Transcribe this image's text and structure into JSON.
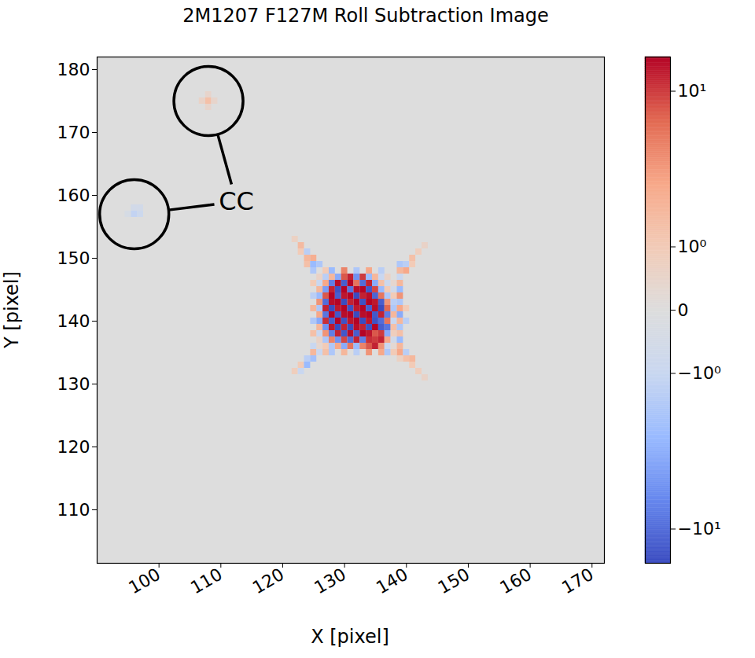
{
  "chart_data": {
    "type": "heatmap",
    "title": "2M1207 F127M Roll Subtraction Image",
    "x_label": "X [pixel]",
    "y_label": "Y [pixel]",
    "xlim": [
      90,
      172
    ],
    "ylim": [
      101.5,
      182
    ],
    "xticks": [
      100,
      110,
      120,
      130,
      140,
      150,
      160,
      170
    ],
    "yticks": [
      110,
      120,
      130,
      140,
      150,
      160,
      170,
      180
    ],
    "background_value": 0,
    "cells": [
      [
        126,
        147,
        0.5
      ],
      [
        127,
        147,
        -1.5
      ],
      [
        128,
        147,
        2
      ],
      [
        129,
        147,
        -4
      ],
      [
        130,
        147,
        8
      ],
      [
        131,
        147,
        12
      ],
      [
        132,
        147,
        -6
      ],
      [
        133,
        147,
        10
      ],
      [
        134,
        147,
        -3
      ],
      [
        135,
        147,
        2
      ],
      [
        136,
        147,
        -1
      ],
      [
        137,
        147,
        0.5
      ],
      [
        126,
        146,
        -1
      ],
      [
        127,
        146,
        3
      ],
      [
        128,
        146,
        -8
      ],
      [
        129,
        146,
        14
      ],
      [
        130,
        146,
        -12
      ],
      [
        131,
        146,
        15
      ],
      [
        132,
        146,
        6
      ],
      [
        133,
        146,
        -10
      ],
      [
        134,
        146,
        12
      ],
      [
        135,
        146,
        -4
      ],
      [
        136,
        146,
        1.5
      ],
      [
        137,
        146,
        -0.8
      ],
      [
        138,
        146,
        0.3
      ],
      [
        126,
        145,
        2
      ],
      [
        127,
        145,
        -5
      ],
      [
        128,
        145,
        12
      ],
      [
        129,
        145,
        -14
      ],
      [
        130,
        145,
        15
      ],
      [
        131,
        145,
        -9
      ],
      [
        132,
        145,
        14
      ],
      [
        133,
        145,
        15
      ],
      [
        134,
        145,
        -13
      ],
      [
        135,
        145,
        9
      ],
      [
        136,
        145,
        -3
      ],
      [
        137,
        145,
        1
      ],
      [
        138,
        145,
        -0.5
      ],
      [
        126,
        144,
        -3
      ],
      [
        127,
        144,
        8
      ],
      [
        128,
        144,
        15
      ],
      [
        129,
        144,
        -12
      ],
      [
        130,
        144,
        13
      ],
      [
        131,
        144,
        15
      ],
      [
        132,
        144,
        -15
      ],
      [
        133,
        144,
        12
      ],
      [
        134,
        144,
        14
      ],
      [
        135,
        144,
        -11
      ],
      [
        136,
        144,
        6
      ],
      [
        137,
        144,
        -2
      ],
      [
        138,
        144,
        1
      ],
      [
        126,
        143,
        4
      ],
      [
        127,
        143,
        -10
      ],
      [
        128,
        143,
        14
      ],
      [
        129,
        143,
        15
      ],
      [
        130,
        143,
        -15
      ],
      [
        131,
        143,
        12
      ],
      [
        132,
        143,
        15
      ],
      [
        133,
        143,
        -14
      ],
      [
        134,
        143,
        15
      ],
      [
        135,
        143,
        13
      ],
      [
        136,
        143,
        -12
      ],
      [
        137,
        143,
        4
      ],
      [
        138,
        143,
        -1.5
      ],
      [
        126,
        142,
        -2
      ],
      [
        127,
        142,
        12
      ],
      [
        128,
        142,
        -15
      ],
      [
        129,
        142,
        13
      ],
      [
        130,
        142,
        15
      ],
      [
        131,
        142,
        -14
      ],
      [
        132,
        142,
        13
      ],
      [
        133,
        142,
        15
      ],
      [
        134,
        142,
        -12
      ],
      [
        135,
        142,
        14
      ],
      [
        136,
        142,
        -15
      ],
      [
        137,
        142,
        7
      ],
      [
        138,
        142,
        -2
      ],
      [
        126,
        141,
        3
      ],
      [
        127,
        141,
        -9
      ],
      [
        128,
        141,
        15
      ],
      [
        129,
        141,
        -13
      ],
      [
        130,
        141,
        14
      ],
      [
        131,
        141,
        15
      ],
      [
        132,
        141,
        -15
      ],
      [
        133,
        141,
        14
      ],
      [
        134,
        141,
        15
      ],
      [
        135,
        141,
        -13
      ],
      [
        136,
        141,
        12
      ],
      [
        137,
        141,
        -8
      ],
      [
        138,
        141,
        2
      ],
      [
        126,
        140,
        -4
      ],
      [
        127,
        140,
        11
      ],
      [
        128,
        140,
        -12
      ],
      [
        129,
        140,
        15
      ],
      [
        130,
        140,
        -14
      ],
      [
        131,
        140,
        13
      ],
      [
        132,
        140,
        15
      ],
      [
        133,
        140,
        -15
      ],
      [
        134,
        140,
        13
      ],
      [
        135,
        140,
        -14
      ],
      [
        136,
        140,
        -10
      ],
      [
        137,
        140,
        6
      ],
      [
        138,
        140,
        -1
      ],
      [
        126,
        139,
        2
      ],
      [
        127,
        139,
        -6
      ],
      [
        128,
        139,
        13
      ],
      [
        129,
        139,
        -15
      ],
      [
        130,
        139,
        12
      ],
      [
        131,
        139,
        -15
      ],
      [
        132,
        139,
        14
      ],
      [
        133,
        139,
        12
      ],
      [
        134,
        139,
        -14
      ],
      [
        135,
        139,
        15
      ],
      [
        136,
        139,
        -12
      ],
      [
        137,
        139,
        -9
      ],
      [
        138,
        139,
        1.5
      ],
      [
        126,
        138,
        -1
      ],
      [
        127,
        138,
        4
      ],
      [
        128,
        138,
        -8
      ],
      [
        129,
        138,
        12
      ],
      [
        130,
        138,
        -13
      ],
      [
        131,
        138,
        14
      ],
      [
        132,
        138,
        -12
      ],
      [
        133,
        138,
        15
      ],
      [
        134,
        138,
        13
      ],
      [
        135,
        138,
        8
      ],
      [
        136,
        138,
        10
      ],
      [
        137,
        138,
        -4
      ],
      [
        138,
        138,
        0.8
      ],
      [
        126,
        137,
        0.5
      ],
      [
        127,
        137,
        -2
      ],
      [
        128,
        137,
        5
      ],
      [
        129,
        137,
        -6
      ],
      [
        130,
        137,
        9
      ],
      [
        131,
        137,
        -10
      ],
      [
        132,
        137,
        12
      ],
      [
        133,
        137,
        -8
      ],
      [
        134,
        137,
        11
      ],
      [
        135,
        137,
        10
      ],
      [
        136,
        137,
        12
      ],
      [
        137,
        137,
        3
      ],
      [
        138,
        137,
        -0.5
      ],
      [
        126,
        136,
        0.3
      ],
      [
        127,
        136,
        1
      ],
      [
        128,
        136,
        -2
      ],
      [
        129,
        136,
        3
      ],
      [
        130,
        136,
        -4
      ],
      [
        131,
        136,
        6
      ],
      [
        132,
        136,
        -3
      ],
      [
        133,
        136,
        5
      ],
      [
        134,
        136,
        8
      ],
      [
        135,
        136,
        12
      ],
      [
        136,
        136,
        4
      ],
      [
        137,
        136,
        -1
      ],
      [
        138,
        136,
        0.2
      ],
      [
        125,
        148,
        -2
      ],
      [
        124,
        149,
        1.5
      ],
      [
        125,
        149,
        -3
      ],
      [
        124,
        150,
        2
      ],
      [
        123,
        151,
        1
      ],
      [
        124,
        151,
        -1.5
      ],
      [
        123,
        152,
        1.8
      ],
      [
        122,
        153,
        0.6
      ],
      [
        125,
        150,
        2.5
      ],
      [
        126,
        149,
        -2
      ],
      [
        139,
        148,
        2
      ],
      [
        140,
        149,
        -1.5
      ],
      [
        140,
        148,
        3
      ],
      [
        141,
        150,
        1.5
      ],
      [
        142,
        151,
        0.8
      ],
      [
        139,
        149,
        -2
      ],
      [
        141,
        149,
        1
      ],
      [
        143,
        152,
        0.5
      ],
      [
        125,
        135,
        2
      ],
      [
        124,
        134,
        -1.5
      ],
      [
        125,
        134,
        -2.5
      ],
      [
        123,
        133,
        1
      ],
      [
        124,
        133,
        -3
      ],
      [
        122,
        132,
        0.8
      ],
      [
        126,
        135,
        -1
      ],
      [
        127,
        135,
        1.5
      ],
      [
        123,
        132,
        -1
      ],
      [
        139,
        135,
        3
      ],
      [
        140,
        134,
        1.5
      ],
      [
        141,
        133,
        1
      ],
      [
        142,
        132,
        0.8
      ],
      [
        140,
        135,
        -1.5
      ],
      [
        143,
        131,
        0.5
      ],
      [
        141,
        134,
        2
      ],
      [
        139,
        134,
        0.6
      ],
      [
        128,
        148,
        -3
      ],
      [
        130,
        148,
        5
      ],
      [
        132,
        148,
        -2
      ],
      [
        134,
        148,
        3
      ],
      [
        136,
        148,
        -1.5
      ],
      [
        127,
        148,
        1
      ],
      [
        139,
        147,
        -1
      ],
      [
        139,
        146,
        2
      ],
      [
        139,
        145,
        -3
      ],
      [
        139,
        144,
        4
      ],
      [
        139,
        143,
        -2
      ],
      [
        139,
        142,
        3
      ],
      [
        139,
        141,
        -4
      ],
      [
        139,
        140,
        2
      ],
      [
        139,
        139,
        -2
      ],
      [
        139,
        138,
        1.5
      ],
      [
        139,
        137,
        -3
      ],
      [
        139,
        136,
        2
      ],
      [
        140,
        140,
        -1.5
      ],
      [
        140,
        142,
        1
      ],
      [
        125,
        146,
        1
      ],
      [
        125,
        144,
        -1.5
      ],
      [
        125,
        142,
        2
      ],
      [
        125,
        140,
        -2
      ],
      [
        125,
        138,
        1.5
      ],
      [
        125,
        136,
        -1
      ],
      [
        128,
        135,
        -2
      ],
      [
        130,
        135,
        2
      ],
      [
        132,
        135,
        -1.5
      ],
      [
        134,
        135,
        4
      ],
      [
        136,
        135,
        3
      ],
      [
        137,
        135,
        -2
      ],
      [
        138,
        135,
        1
      ],
      [
        108,
        175,
        1.5
      ],
      [
        107,
        175,
        0.5
      ],
      [
        108,
        176,
        0.4
      ],
      [
        109,
        175,
        0.4
      ],
      [
        108,
        174,
        0.4
      ],
      [
        96,
        157,
        -1.2
      ],
      [
        97,
        157,
        -0.8
      ],
      [
        96,
        158,
        -0.5
      ],
      [
        97,
        158,
        -0.5
      ],
      [
        95,
        157,
        -0.3
      ]
    ],
    "colorbar": {
      "lim": [
        -15,
        15
      ],
      "log": true,
      "ticks": [
        {
          "value": -10,
          "label": "−10¹"
        },
        {
          "value": -1,
          "label": "−10⁰"
        },
        0,
        {
          "value": 1,
          "label": "10⁰"
        },
        {
          "value": 10,
          "label": "10¹"
        }
      ],
      "colors": [
        "#3b4cc0",
        "#6788ee",
        "#9abbff",
        "#c9d7f0",
        "#dddddd",
        "#f2cbb7",
        "#f7a889",
        "#e26952",
        "#b40426"
      ]
    },
    "annotations": [
      {
        "text": "CC",
        "x": 112.5,
        "y": 159,
        "targets": [
          [
            108,
            175
          ],
          [
            96,
            157
          ]
        ]
      }
    ]
  }
}
